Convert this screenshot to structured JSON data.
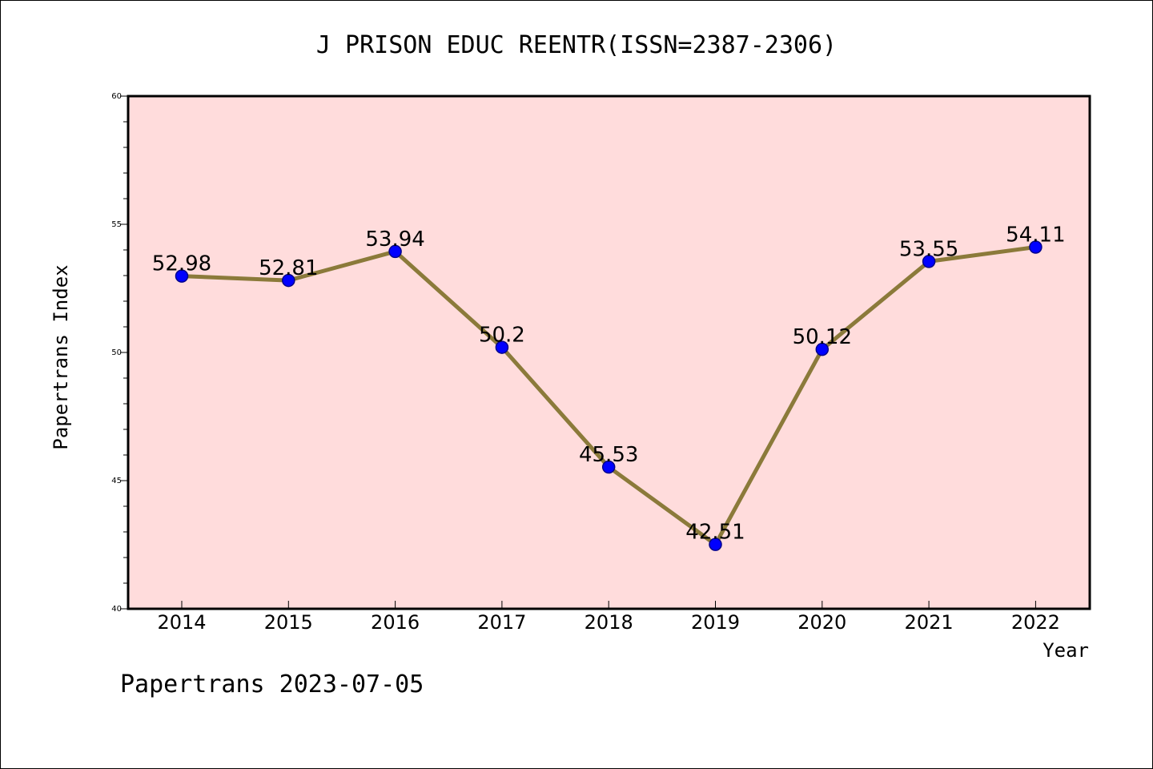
{
  "colors": {
    "plot_background": "#ffdcdc",
    "line": "#8b7a3a",
    "marker_fill": "#0000ff",
    "marker_stroke": "#00008b",
    "axis": "#000000"
  },
  "footer": {
    "text": "Papertrans 2023-07-05"
  },
  "chart_data": {
    "type": "line",
    "title": "J PRISON EDUC REENTR(ISSN=2387-2306)",
    "xlabel": "Year",
    "ylabel": "Papertrans Index",
    "categories": [
      "2014",
      "2015",
      "2016",
      "2017",
      "2018",
      "2019",
      "2020",
      "2021",
      "2022"
    ],
    "series": [
      {
        "values": [
          52.98,
          52.81,
          53.94,
          50.2,
          45.53,
          42.51,
          50.12,
          53.55,
          54.11
        ],
        "data_labels": [
          "52.98",
          "52.81",
          "53.94",
          "50.2",
          "45.53",
          "42.51",
          "50.12",
          "53.55",
          "54.11"
        ]
      }
    ],
    "ylim": [
      40,
      60
    ],
    "yticks": [
      "40",
      "45",
      "50",
      "55",
      "60"
    ],
    "y_minor_step": 1,
    "grid": false,
    "legend": "none"
  }
}
